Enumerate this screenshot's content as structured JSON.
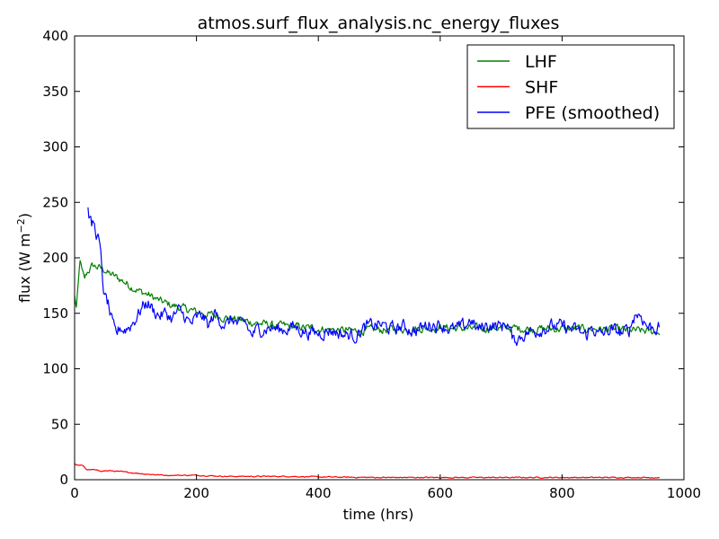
{
  "chart_data": {
    "type": "line",
    "title": "atmos.surf_flux_analysis.nc_energy_fluxes",
    "xlabel": "time (hrs)",
    "ylabel": "flux (W m",
    "ylabel_exponent": "−2",
    "ylabel_close": ")",
    "xlim": [
      0,
      1000
    ],
    "ylim": [
      0,
      400
    ],
    "xticks": [
      "0",
      "200",
      "400",
      "600",
      "800",
      "1000"
    ],
    "yticks": [
      "0",
      "50",
      "100",
      "150",
      "200",
      "250",
      "300",
      "350",
      "400"
    ],
    "grid": false,
    "legend_position": "top-right",
    "series": [
      {
        "name": "LHF",
        "color": "#008000",
        "noise": 3,
        "x": [
          0,
          3,
          6,
          9,
          12,
          16,
          20,
          25,
          30,
          35,
          40,
          45,
          50,
          55,
          60,
          70,
          80,
          90,
          100,
          110,
          120,
          130,
          140,
          150,
          160,
          170,
          180,
          190,
          200,
          220,
          240,
          260,
          280,
          300,
          330,
          360,
          400,
          430,
          460,
          500,
          550,
          600,
          650,
          700,
          750,
          800,
          850,
          900,
          930,
          960
        ],
        "y": [
          165,
          155,
          175,
          198,
          188,
          180,
          186,
          190,
          193,
          192,
          191,
          190,
          189,
          186,
          185,
          182,
          179,
          175,
          172,
          169,
          167,
          164,
          161,
          159,
          157,
          156,
          154,
          153,
          151,
          149,
          147,
          145,
          143,
          141,
          139,
          138,
          136,
          135,
          134,
          135,
          136,
          137,
          136,
          137,
          136,
          136,
          136,
          135,
          134,
          133
        ]
      },
      {
        "name": "SHF",
        "color": "#ff0000",
        "noise": 0.4,
        "x": [
          0,
          5,
          10,
          15,
          20,
          30,
          40,
          60,
          80,
          100,
          120,
          150,
          200,
          250,
          300,
          350,
          400,
          500,
          600,
          700,
          800,
          900,
          960
        ],
        "y": [
          14,
          13,
          13,
          12,
          9,
          9,
          8,
          8,
          7,
          6,
          5,
          4,
          4,
          3,
          3,
          3,
          2.5,
          2,
          2,
          2,
          2,
          2,
          2
        ]
      },
      {
        "name": "PFE (smoothed)",
        "color": "#0000ff",
        "noise": 5,
        "x": [
          22,
          25,
          28,
          31,
          34,
          37,
          40,
          43,
          46,
          49,
          52,
          55,
          58,
          62,
          66,
          70,
          75,
          80,
          90,
          100,
          110,
          120,
          130,
          140,
          150,
          160,
          170,
          180,
          190,
          200,
          210,
          220,
          230,
          240,
          250,
          260,
          270,
          280,
          290,
          300,
          320,
          340,
          360,
          380,
          400,
          420,
          440,
          460,
          480,
          500,
          520,
          540,
          560,
          580,
          600,
          620,
          640,
          650,
          660,
          680,
          700,
          710,
          720,
          740,
          760,
          780,
          800,
          820,
          840,
          850,
          860,
          880,
          900,
          910,
          920,
          930,
          940,
          960
        ],
        "y": [
          242,
          235,
          228,
          232,
          225,
          220,
          215,
          200,
          180,
          165,
          162,
          158,
          150,
          140,
          132,
          132,
          138,
          135,
          138,
          145,
          155,
          160,
          152,
          148,
          150,
          145,
          152,
          148,
          140,
          145,
          148,
          138,
          150,
          143,
          140,
          145,
          138,
          142,
          130,
          135,
          137,
          135,
          138,
          133,
          132,
          135,
          131,
          130,
          138,
          140,
          136,
          138,
          134,
          140,
          140,
          135,
          138,
          145,
          135,
          140,
          138,
          142,
          125,
          132,
          135,
          138,
          138,
          135,
          130,
          138,
          130,
          135,
          132,
          135,
          150,
          148,
          138,
          137
        ]
      }
    ]
  }
}
